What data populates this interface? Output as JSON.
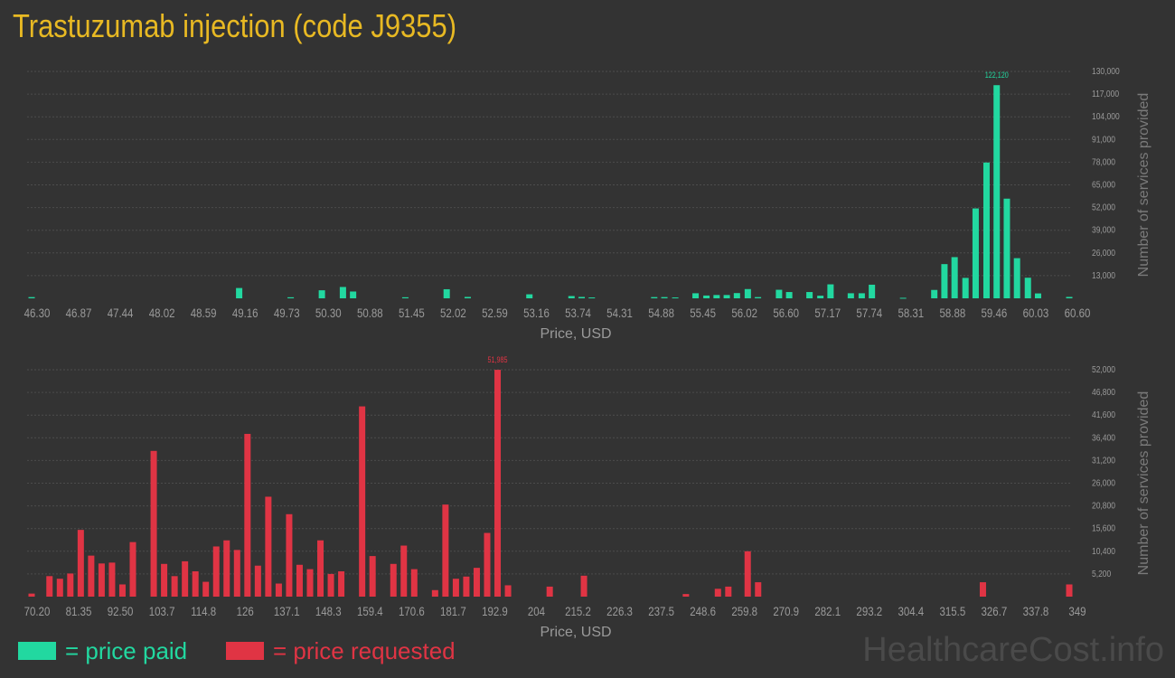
{
  "title": "Trastuzumab injection (code J9355)",
  "colors": {
    "title": "#e8b923",
    "paid": "#22d8a0",
    "requested": "#e03444",
    "background": "#333333",
    "grid": "#4c4c4c",
    "tick_text": "#9a9a9a"
  },
  "legend": {
    "paid_label": "= price paid",
    "requested_label": "= price requested"
  },
  "watermark": "HealthcareCost.info",
  "chart_data": [
    {
      "type": "bar",
      "name": "price-paid",
      "xlabel": "Price, USD",
      "ylabel": "Number of services provided",
      "xlim": [
        46.3,
        60.6
      ],
      "ylim": [
        0,
        130000
      ],
      "x_ticks": [
        "46.30",
        "46.87",
        "47.44",
        "48.02",
        "48.59",
        "49.16",
        "49.73",
        "50.30",
        "50.88",
        "51.45",
        "52.02",
        "52.59",
        "53.16",
        "53.74",
        "54.31",
        "54.88",
        "55.45",
        "56.02",
        "56.60",
        "57.17",
        "57.74",
        "58.31",
        "58.88",
        "59.46",
        "60.03",
        "60.60"
      ],
      "y_ticks": [
        "13,000",
        "26,000",
        "39,000",
        "52,000",
        "65,000",
        "78,000",
        "91,000",
        "104,000",
        "117,000",
        "130,000"
      ],
      "peak_label": "122,120",
      "grid": true,
      "bars": [
        {
          "x": 46.3,
          "y": 700
        },
        {
          "x": 49.16,
          "y": 5900
        },
        {
          "x": 49.87,
          "y": 600
        },
        {
          "x": 50.3,
          "y": 4600
        },
        {
          "x": 50.59,
          "y": 6500
        },
        {
          "x": 50.73,
          "y": 3900
        },
        {
          "x": 51.45,
          "y": 600
        },
        {
          "x": 52.02,
          "y": 5200
        },
        {
          "x": 52.31,
          "y": 800
        },
        {
          "x": 53.16,
          "y": 2300
        },
        {
          "x": 53.74,
          "y": 1300
        },
        {
          "x": 53.88,
          "y": 800
        },
        {
          "x": 54.02,
          "y": 500
        },
        {
          "x": 54.88,
          "y": 700
        },
        {
          "x": 55.02,
          "y": 700
        },
        {
          "x": 55.17,
          "y": 500
        },
        {
          "x": 55.45,
          "y": 2900
        },
        {
          "x": 55.6,
          "y": 1600
        },
        {
          "x": 55.74,
          "y": 1900
        },
        {
          "x": 55.88,
          "y": 1900
        },
        {
          "x": 56.02,
          "y": 3000
        },
        {
          "x": 56.17,
          "y": 5300
        },
        {
          "x": 56.31,
          "y": 700
        },
        {
          "x": 56.6,
          "y": 4900
        },
        {
          "x": 56.74,
          "y": 3600
        },
        {
          "x": 57.02,
          "y": 3600
        },
        {
          "x": 57.17,
          "y": 1500
        },
        {
          "x": 57.31,
          "y": 8000
        },
        {
          "x": 57.59,
          "y": 2900
        },
        {
          "x": 57.74,
          "y": 2900
        },
        {
          "x": 57.88,
          "y": 7800
        },
        {
          "x": 58.31,
          "y": 300
        },
        {
          "x": 58.74,
          "y": 4800
        },
        {
          "x": 58.88,
          "y": 19600
        },
        {
          "x": 59.02,
          "y": 23600
        },
        {
          "x": 59.17,
          "y": 11700
        },
        {
          "x": 59.31,
          "y": 51500
        },
        {
          "x": 59.46,
          "y": 77800
        },
        {
          "x": 59.6,
          "y": 122120
        },
        {
          "x": 59.74,
          "y": 57100
        },
        {
          "x": 59.88,
          "y": 23000
        },
        {
          "x": 60.03,
          "y": 11800
        },
        {
          "x": 60.17,
          "y": 2800
        },
        {
          "x": 60.6,
          "y": 800
        }
      ]
    },
    {
      "type": "bar",
      "name": "price-requested",
      "xlabel": "Price, USD",
      "ylabel": "Number of services provided",
      "xlim": [
        70.2,
        349
      ],
      "ylim": [
        0,
        52000
      ],
      "x_ticks": [
        "70.20",
        "81.35",
        "92.50",
        "103.7",
        "114.8",
        "126",
        "137.1",
        "148.3",
        "159.4",
        "170.6",
        "181.7",
        "192.9",
        "204",
        "215.2",
        "226.3",
        "237.5",
        "248.6",
        "259.8",
        "270.9",
        "282.1",
        "293.2",
        "304.4",
        "315.5",
        "326.7",
        "337.8",
        "349"
      ],
      "y_ticks": [
        "5,200",
        "10,400",
        "15,600",
        "20,800",
        "26,000",
        "31,200",
        "36,400",
        "41,600",
        "46,800",
        "52,000"
      ],
      "peak_label": "51,985",
      "grid": true,
      "bars": [
        {
          "x": 70.2,
          "y": 700
        },
        {
          "x": 75.0,
          "y": 4700
        },
        {
          "x": 77.8,
          "y": 4100
        },
        {
          "x": 80.6,
          "y": 5300
        },
        {
          "x": 83.4,
          "y": 15300
        },
        {
          "x": 86.2,
          "y": 9400
        },
        {
          "x": 89.0,
          "y": 7600
        },
        {
          "x": 91.8,
          "y": 7800
        },
        {
          "x": 94.6,
          "y": 2800
        },
        {
          "x": 97.4,
          "y": 12500
        },
        {
          "x": 103.0,
          "y": 33400
        },
        {
          "x": 105.8,
          "y": 7500
        },
        {
          "x": 108.6,
          "y": 4700
        },
        {
          "x": 111.4,
          "y": 8100
        },
        {
          "x": 114.2,
          "y": 5800
        },
        {
          "x": 117.0,
          "y": 3400
        },
        {
          "x": 119.8,
          "y": 11500
        },
        {
          "x": 122.6,
          "y": 12900
        },
        {
          "x": 125.4,
          "y": 10700
        },
        {
          "x": 128.2,
          "y": 37300
        },
        {
          "x": 131.0,
          "y": 7100
        },
        {
          "x": 133.8,
          "y": 22900
        },
        {
          "x": 136.6,
          "y": 3000
        },
        {
          "x": 139.4,
          "y": 18900
        },
        {
          "x": 142.2,
          "y": 7300
        },
        {
          "x": 145.0,
          "y": 6300
        },
        {
          "x": 147.8,
          "y": 12900
        },
        {
          "x": 150.6,
          "y": 5200
        },
        {
          "x": 153.4,
          "y": 5800
        },
        {
          "x": 159.0,
          "y": 43600
        },
        {
          "x": 161.8,
          "y": 9300
        },
        {
          "x": 167.4,
          "y": 7500
        },
        {
          "x": 170.2,
          "y": 11700
        },
        {
          "x": 173.0,
          "y": 6300
        },
        {
          "x": 178.6,
          "y": 1500
        },
        {
          "x": 181.4,
          "y": 21100
        },
        {
          "x": 184.2,
          "y": 4100
        },
        {
          "x": 187.0,
          "y": 4600
        },
        {
          "x": 189.8,
          "y": 6600
        },
        {
          "x": 192.6,
          "y": 14600
        },
        {
          "x": 195.4,
          "y": 51985
        },
        {
          "x": 198.2,
          "y": 2600
        },
        {
          "x": 209.4,
          "y": 2300
        },
        {
          "x": 218.6,
          "y": 4800
        },
        {
          "x": 246.0,
          "y": 600
        },
        {
          "x": 254.6,
          "y": 1800
        },
        {
          "x": 257.4,
          "y": 2300
        },
        {
          "x": 262.6,
          "y": 10400
        },
        {
          "x": 265.4,
          "y": 3300
        },
        {
          "x": 325.8,
          "y": 3300
        },
        {
          "x": 349.0,
          "y": 2800
        }
      ]
    }
  ]
}
